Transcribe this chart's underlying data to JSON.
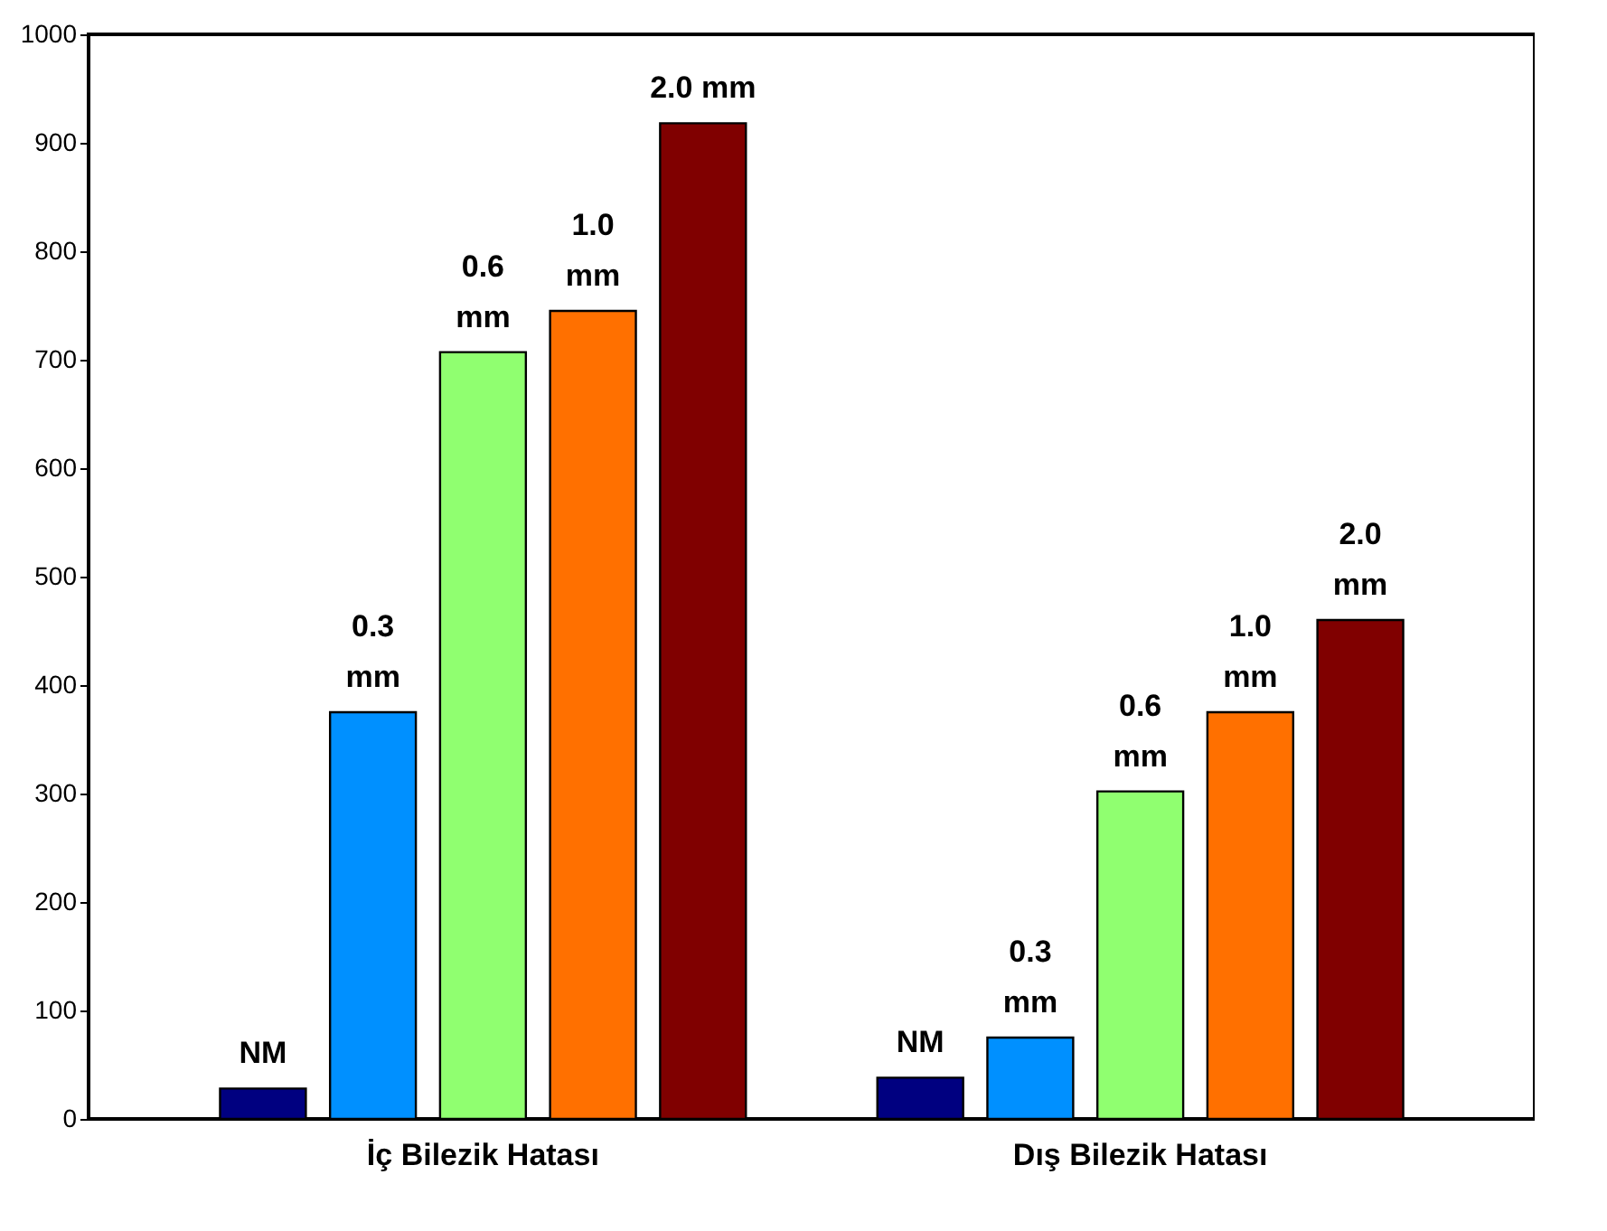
{
  "chart_data": {
    "type": "bar",
    "categories": [
      "İç Bilezik Hatası",
      "Dış Bilezik Hatası"
    ],
    "series": [
      {
        "name": "NM",
        "color": "#000080",
        "values": [
          28,
          38
        ]
      },
      {
        "name": "0.3 mm",
        "color": "#0090ff",
        "values": [
          375,
          75
        ]
      },
      {
        "name": "0.6 mm",
        "color": "#90ff70",
        "values": [
          707,
          302
        ]
      },
      {
        "name": "1.0 mm",
        "color": "#ff7000",
        "values": [
          745,
          375
        ]
      },
      {
        "name": "2.0 mm",
        "color": "#800000",
        "values": [
          918,
          460
        ]
      }
    ],
    "ylim": [
      0,
      1000
    ],
    "yticks": [
      0,
      100,
      200,
      300,
      400,
      500,
      600,
      700,
      800,
      900,
      1000
    ],
    "grid": false,
    "legend": false
  }
}
